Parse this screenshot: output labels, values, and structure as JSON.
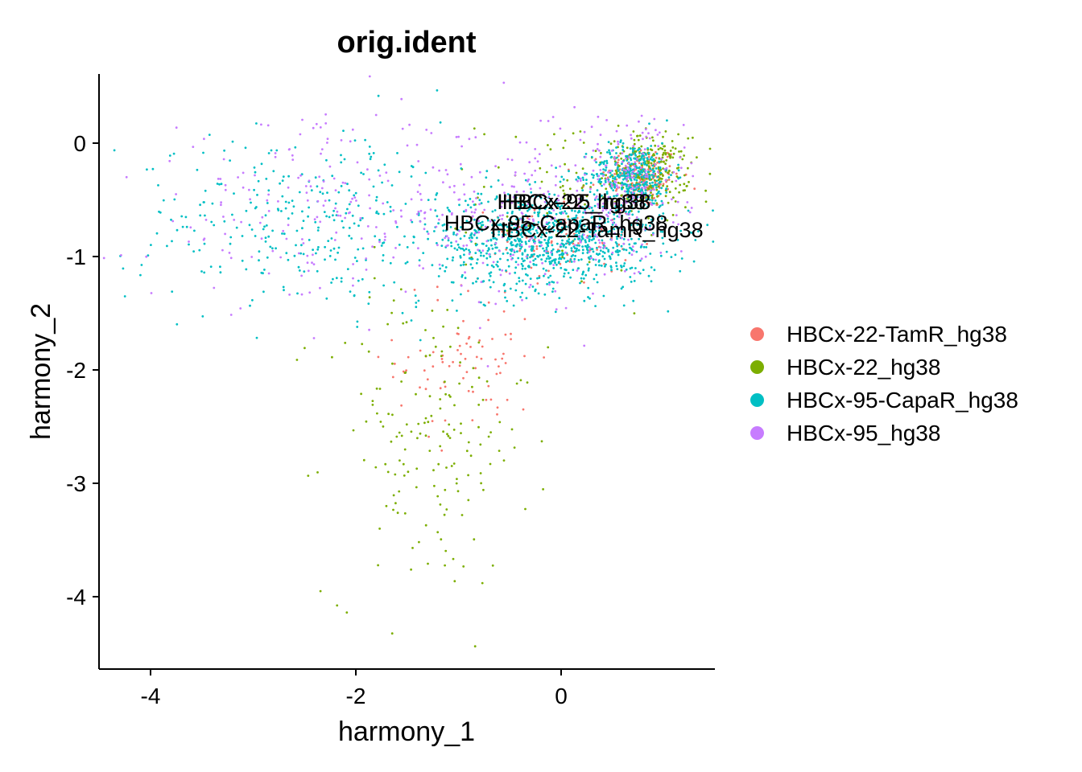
{
  "chart_data": {
    "type": "scatter",
    "title": "orig.ident",
    "xlabel": "harmony_1",
    "ylabel": "harmony_2",
    "xlim": [
      -4.5,
      1.5
    ],
    "ylim": [
      -4.6,
      0.6
    ],
    "xticks": [
      -4,
      -2,
      0
    ],
    "yticks": [
      0,
      -1,
      -2,
      -3,
      -4
    ],
    "grid": false,
    "legend_position": "right",
    "series": [
      {
        "name": "HBCx-22-TamR_hg38",
        "color": "#F8766D",
        "cluster_center_label": [
          0.35,
          -0.83
        ],
        "clusters": [
          {
            "center": [
              0.8,
              -0.3
            ],
            "spread": [
              0.18,
              0.14
            ],
            "n": 170
          },
          {
            "center": [
              0.0,
              -0.85
            ],
            "spread": [
              0.35,
              0.2
            ],
            "n": 90
          },
          {
            "center": [
              -0.9,
              -1.9
            ],
            "spread": [
              0.35,
              0.35
            ],
            "n": 80
          }
        ]
      },
      {
        "name": "HBCx-22_hg38",
        "color": "#7CAE00",
        "cluster_center_label": [
          0.1,
          -0.58
        ],
        "clusters": [
          {
            "center": [
              0.85,
              -0.25
            ],
            "spread": [
              0.2,
              0.15
            ],
            "n": 260
          },
          {
            "center": [
              0.1,
              -0.45
            ],
            "spread": [
              0.45,
              0.35
            ],
            "n": 90
          },
          {
            "center": [
              -1.3,
              -2.6
            ],
            "spread": [
              0.5,
              0.7
            ],
            "n": 170
          }
        ]
      },
      {
        "name": "HBCx-95-CapaR_hg38",
        "color": "#00BFC4",
        "cluster_center_label": [
          -0.05,
          -0.77
        ],
        "clusters": [
          {
            "center": [
              0.7,
              -0.28
            ],
            "spread": [
              0.2,
              0.14
            ],
            "n": 360
          },
          {
            "center": [
              -0.1,
              -0.85
            ],
            "spread": [
              0.55,
              0.22
            ],
            "n": 900
          },
          {
            "center": [
              -2.4,
              -0.7
            ],
            "spread": [
              0.9,
              0.4
            ],
            "n": 320
          }
        ]
      },
      {
        "name": "HBCx-95_hg38",
        "color": "#C77CFF",
        "cluster_center_label": [
          0.15,
          -0.58
        ],
        "clusters": [
          {
            "center": [
              0.6,
              -0.4
            ],
            "spread": [
              0.3,
              0.3
            ],
            "n": 220
          },
          {
            "center": [
              -0.3,
              -0.7
            ],
            "spread": [
              0.6,
              0.35
            ],
            "n": 180
          },
          {
            "center": [
              -2.2,
              -0.6
            ],
            "spread": [
              0.9,
              0.4
            ],
            "n": 220
          }
        ]
      }
    ]
  }
}
